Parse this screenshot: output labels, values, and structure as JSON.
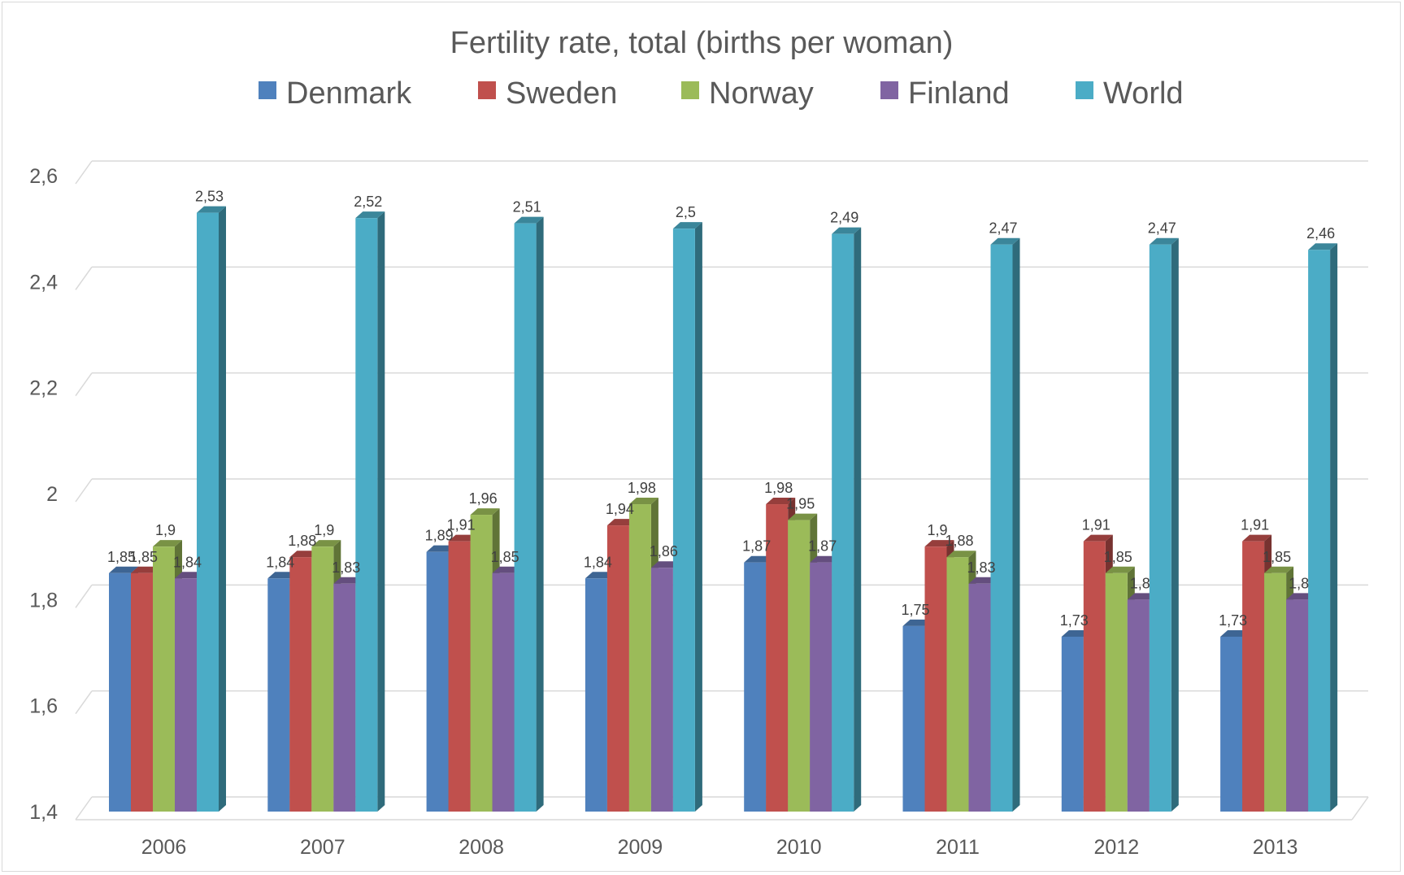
{
  "chart_data": {
    "type": "bar",
    "title": "Fertility rate, total (births per woman)",
    "xlabel": "",
    "ylabel": "",
    "ylim": [
      1.4,
      2.6
    ],
    "yticks": [
      1.4,
      1.6,
      1.8,
      2,
      2.2,
      2.4,
      2.6
    ],
    "ytick_labels": [
      "1,4",
      "1,6",
      "1,8",
      "2",
      "2,2",
      "2,4",
      "2,6"
    ],
    "grid": true,
    "legend": "top",
    "categories": [
      "2006",
      "2007",
      "2008",
      "2009",
      "2010",
      "2011",
      "2012",
      "2013"
    ],
    "series": [
      {
        "name": "Denmark",
        "color": "#4f81bd",
        "values": [
          1.85,
          1.84,
          1.89,
          1.84,
          1.87,
          1.75,
          1.73,
          1.73
        ],
        "labels": [
          "1,85",
          "1,84",
          "1,89",
          "1,84",
          "1,87",
          "1,75",
          "1,73",
          "1,73"
        ]
      },
      {
        "name": "Sweden",
        "color": "#c0504d",
        "values": [
          1.85,
          1.88,
          1.91,
          1.94,
          1.98,
          1.9,
          1.91,
          1.91
        ],
        "labels": [
          "1,85",
          "1,88",
          "1,91",
          "1,94",
          "1,98",
          "1,9",
          "1,91",
          "1,91"
        ]
      },
      {
        "name": "Norway",
        "color": "#9bbb59",
        "values": [
          1.9,
          1.9,
          1.96,
          1.98,
          1.95,
          1.88,
          1.85,
          1.85
        ],
        "labels": [
          "1,9",
          "1,9",
          "1,96",
          "1,98",
          "1,95",
          "1,88",
          "1,85",
          "1,85"
        ]
      },
      {
        "name": "Finland",
        "color": "#8064a2",
        "values": [
          1.84,
          1.83,
          1.85,
          1.86,
          1.87,
          1.83,
          1.8,
          1.8
        ],
        "labels": [
          "1,84",
          "1,83",
          "1,85",
          "1,86",
          "1,87",
          "1,83",
          "1,8",
          "1,8"
        ]
      },
      {
        "name": "World",
        "color": "#4bacc6",
        "values": [
          2.53,
          2.52,
          2.51,
          2.5,
          2.49,
          2.47,
          2.47,
          2.46
        ],
        "labels": [
          "2,53",
          "2,52",
          "2,51",
          "2,5",
          "2,49",
          "2,47",
          "2,47",
          "2,46"
        ]
      }
    ]
  }
}
